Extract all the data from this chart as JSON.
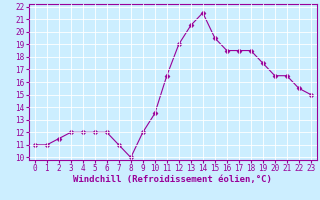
{
  "x": [
    0,
    1,
    2,
    3,
    4,
    5,
    6,
    7,
    8,
    9,
    10,
    11,
    12,
    13,
    14,
    15,
    16,
    17,
    18,
    19,
    20,
    21,
    22,
    23
  ],
  "y": [
    11,
    11,
    11.5,
    12,
    12,
    12,
    12,
    11,
    10,
    12,
    13.5,
    16.5,
    19,
    20.5,
    21.5,
    19.5,
    18.5,
    18.5,
    18.5,
    17.5,
    16.5,
    16.5,
    15.5,
    15
  ],
  "xlabel": "Windchill (Refroidissement éolien,°C)",
  "ylim": [
    9.8,
    22.2
  ],
  "xlim": [
    -0.5,
    23.5
  ],
  "yticks": [
    10,
    11,
    12,
    13,
    14,
    15,
    16,
    17,
    18,
    19,
    20,
    21,
    22
  ],
  "xticks": [
    0,
    1,
    2,
    3,
    4,
    5,
    6,
    7,
    8,
    9,
    10,
    11,
    12,
    13,
    14,
    15,
    16,
    17,
    18,
    19,
    20,
    21,
    22,
    23
  ],
  "line_color": "#990099",
  "marker": "D",
  "marker_size": 2.5,
  "background_color": "#cceeff",
  "grid_color": "#ffffff",
  "tick_label_fontsize": 5.5,
  "xlabel_fontsize": 6.5
}
